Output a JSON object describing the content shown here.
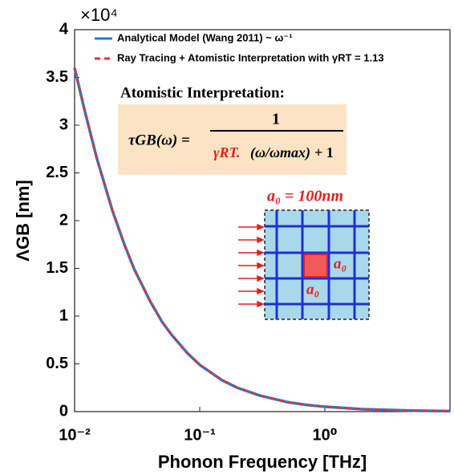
{
  "chart_data": {
    "type": "line",
    "y_label": "ΛGB [nm]",
    "x_label": "Phonon Frequency [THz]",
    "y_multiplier": "×10⁴",
    "x": [
      0.01,
      0.012,
      0.015,
      0.02,
      0.025,
      0.03,
      0.04,
      0.05,
      0.06,
      0.08,
      0.1,
      0.15,
      0.2,
      0.3,
      0.5,
      0.7,
      1,
      2,
      5,
      10
    ],
    "series": [
      {
        "name": "Analytical Model (Wang 2011) ~ ω⁻¹",
        "color": "#2c78c4",
        "style": "solid",
        "values": [
          3.6,
          3.16,
          2.66,
          2.11,
          1.75,
          1.49,
          1.16,
          0.94,
          0.8,
          0.61,
          0.49,
          0.33,
          0.25,
          0.17,
          0.1,
          0.072,
          0.051,
          0.025,
          0.01,
          0.005
        ]
      },
      {
        "name": "Ray Tracing + Atomistic Interpretation with γRT = 1.13",
        "color": "#d9343a",
        "style": "dashed",
        "values": [
          3.6,
          3.16,
          2.66,
          2.11,
          1.75,
          1.49,
          1.16,
          0.94,
          0.8,
          0.61,
          0.49,
          0.33,
          0.25,
          0.17,
          0.1,
          0.072,
          0.051,
          0.025,
          0.01,
          0.005
        ]
      }
    ],
    "xscale": "log",
    "xlim": [
      0.01,
      10
    ],
    "xticks": [
      {
        "value": 0.01,
        "label": "10⁻²"
      },
      {
        "value": 0.1,
        "label": "10⁻¹"
      },
      {
        "value": 1,
        "label": "10⁰"
      }
    ],
    "ylim": [
      0,
      4
    ],
    "yticks": [
      0,
      0.5,
      1,
      1.5,
      2,
      2.5,
      3,
      3.5,
      4
    ],
    "grid": false,
    "legend": "upper left",
    "annotation": {
      "heading": "Atomistic Interpretation:",
      "formula_lhs": "τGB(ω) =",
      "numerator": "1",
      "denominator_gamma": "γRT.",
      "denominator_ratio": "(ω/ωmax)",
      "denominator_tail": "+ 1",
      "inset_title": "a₀ = 100nm",
      "inset_side_label": "a₀",
      "inset_bottom_label": "a₀"
    }
  }
}
